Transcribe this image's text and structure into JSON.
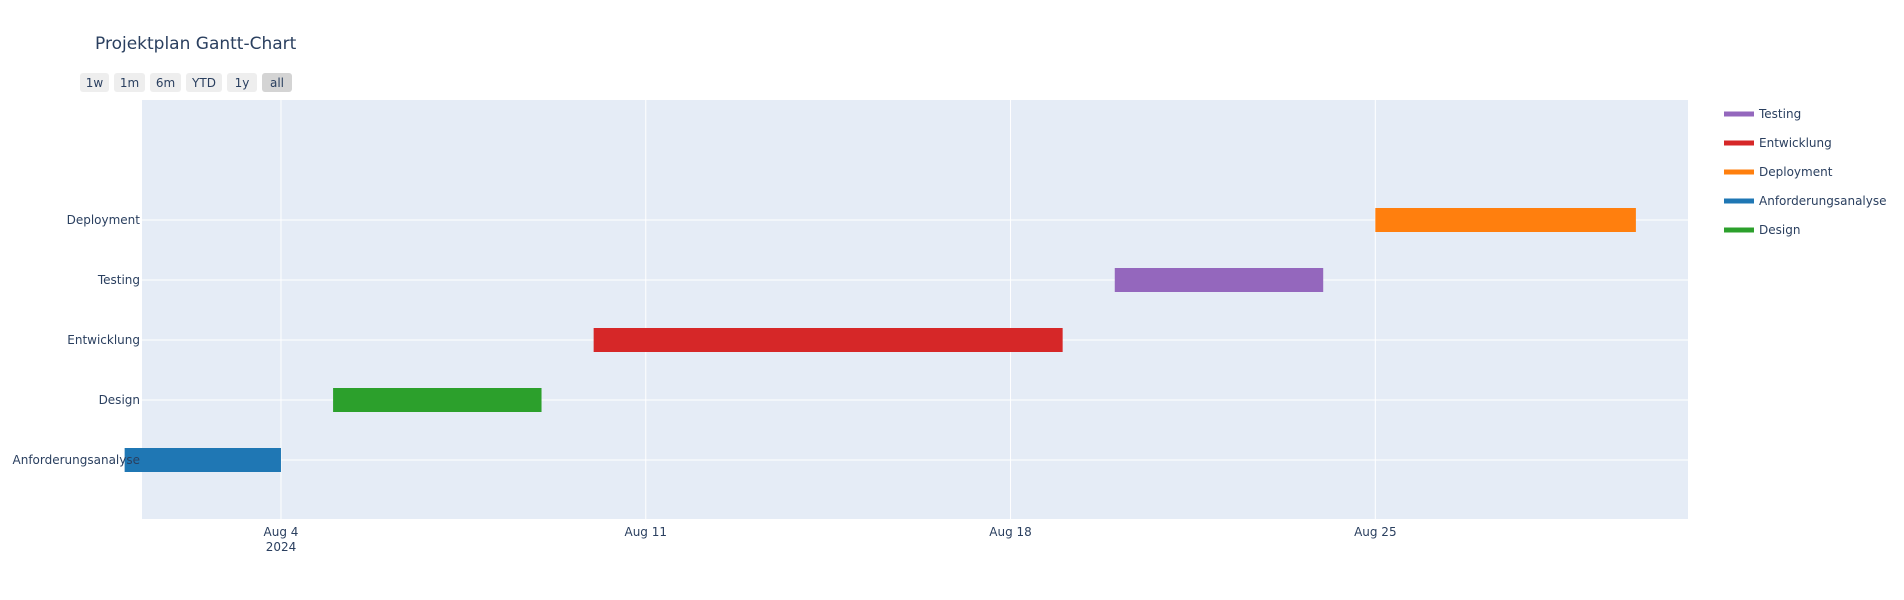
{
  "chart_data": {
    "type": "gantt",
    "title": "Projektplan Gantt-Chart",
    "x_axis": {
      "type": "date",
      "range": [
        "2024-08-01T08:00",
        "2024-08-31T00:00"
      ],
      "ticks": [
        {
          "date": "2024-08-04",
          "label": "Aug 4",
          "sublabel": "2024"
        },
        {
          "date": "2024-08-11",
          "label": "Aug 11",
          "sublabel": ""
        },
        {
          "date": "2024-08-18",
          "label": "Aug 18",
          "sublabel": ""
        },
        {
          "date": "2024-08-25",
          "label": "Aug 25",
          "sublabel": ""
        }
      ],
      "grid": true
    },
    "y_axis": {
      "categories": [
        "Anforderungsanalyse",
        "Design",
        "Entwicklung",
        "Testing",
        "Deployment"
      ],
      "grid": true
    },
    "tasks": [
      {
        "task": "Anforderungsanalyse",
        "start": "2024-08-01",
        "end": "2024-08-04",
        "color": "#1f77b4"
      },
      {
        "task": "Design",
        "start": "2024-08-05",
        "end": "2024-08-09",
        "color": "#2ca02c"
      },
      {
        "task": "Entwicklung",
        "start": "2024-08-10",
        "end": "2024-08-19",
        "color": "#d62728"
      },
      {
        "task": "Testing",
        "start": "2024-08-20",
        "end": "2024-08-24",
        "color": "#9467bd"
      },
      {
        "task": "Deployment",
        "start": "2024-08-25",
        "end": "2024-08-30",
        "color": "#ff7f0e"
      }
    ],
    "legend": {
      "placement": "right",
      "entries": [
        {
          "name": "Testing",
          "color": "#9467bd"
        },
        {
          "name": "Entwicklung",
          "color": "#d62728"
        },
        {
          "name": "Deployment",
          "color": "#ff7f0e"
        },
        {
          "name": "Anforderungsanalyse",
          "color": "#1f77b4"
        },
        {
          "name": "Design",
          "color": "#2ca02c"
        }
      ]
    },
    "range_selector": {
      "buttons": [
        "1w",
        "1m",
        "6m",
        "YTD",
        "1y",
        "all"
      ],
      "active": "all"
    },
    "plot_background": "#e5ecf6"
  }
}
